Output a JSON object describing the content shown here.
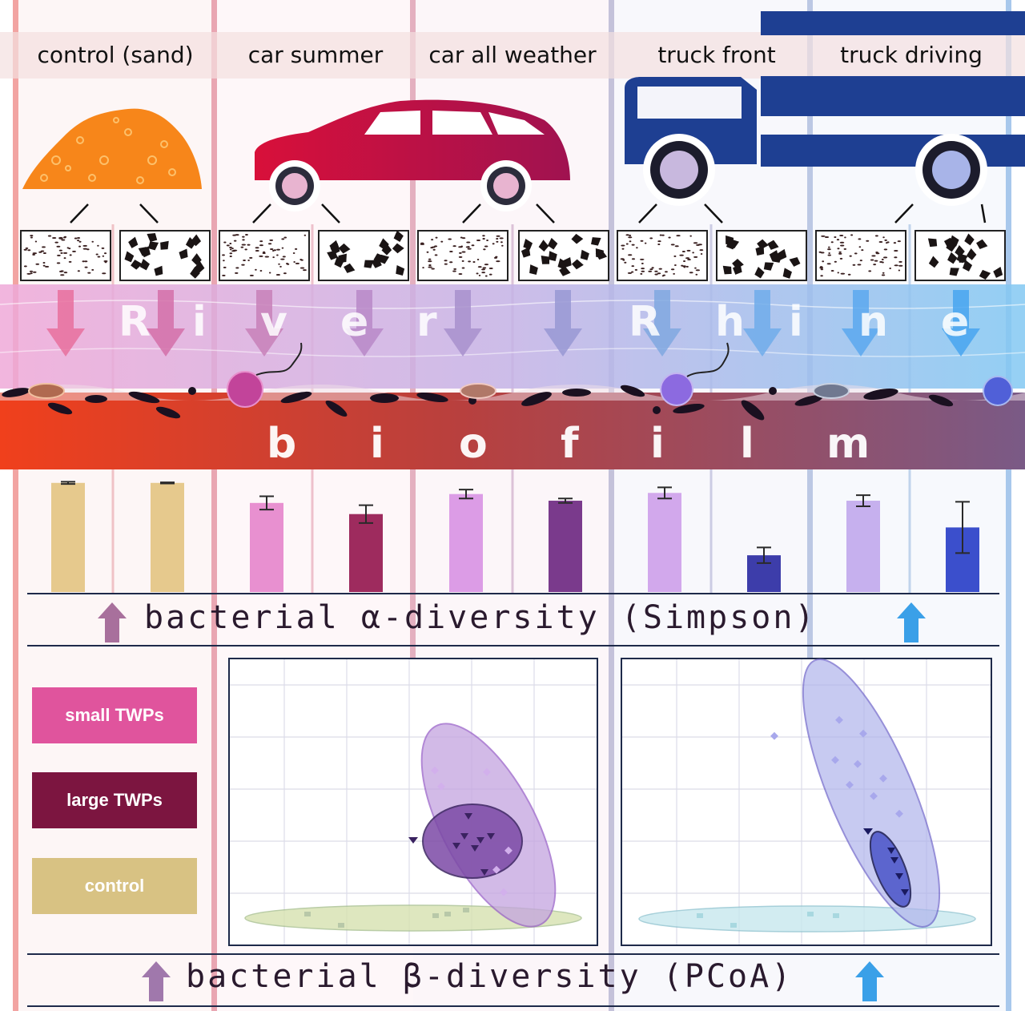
{
  "treatments": [
    {
      "label": "control (sand)"
    },
    {
      "label": "car summer"
    },
    {
      "label": "car all weather"
    },
    {
      "label": "truck front"
    },
    {
      "label": "truck driving"
    }
  ],
  "river_word": [
    "R",
    "i",
    "v",
    "e",
    "r",
    "R",
    "h",
    "i",
    "n",
    "e"
  ],
  "biofilm_word": [
    "b",
    "i",
    "o",
    "f",
    "i",
    "l",
    "m"
  ],
  "alpha_title": "bacterial α-diversity (Simpson)",
  "beta_title": "bacterial β-diversity (PCoA)",
  "legend": [
    {
      "label": "small TWPs",
      "color": "#e0549d"
    },
    {
      "label": "large TWPs",
      "color": "#7c1540"
    },
    {
      "label": "control",
      "color": "#d8c283"
    }
  ],
  "chart_data": {
    "type": "bar",
    "categories": [
      "control small",
      "control large",
      "car summer small",
      "car summer large",
      "car all weather small",
      "car all weather large",
      "truck front small",
      "truck front large",
      "truck driving small",
      "truck driving large"
    ],
    "values": [
      0.98,
      0.98,
      0.8,
      0.7,
      0.88,
      0.82,
      0.89,
      0.33,
      0.82,
      0.58
    ],
    "errors": [
      0.01,
      0.005,
      0.06,
      0.08,
      0.04,
      0.02,
      0.05,
      0.07,
      0.05,
      0.23
    ],
    "colors": [
      "#e6c98d",
      "#e6c98d",
      "#e890d0",
      "#9e2b5e",
      "#dc9ce6",
      "#7a3a8c",
      "#d2a8ec",
      "#3d3daa",
      "#c6b0ee",
      "#3b4fcc"
    ]
  }
}
